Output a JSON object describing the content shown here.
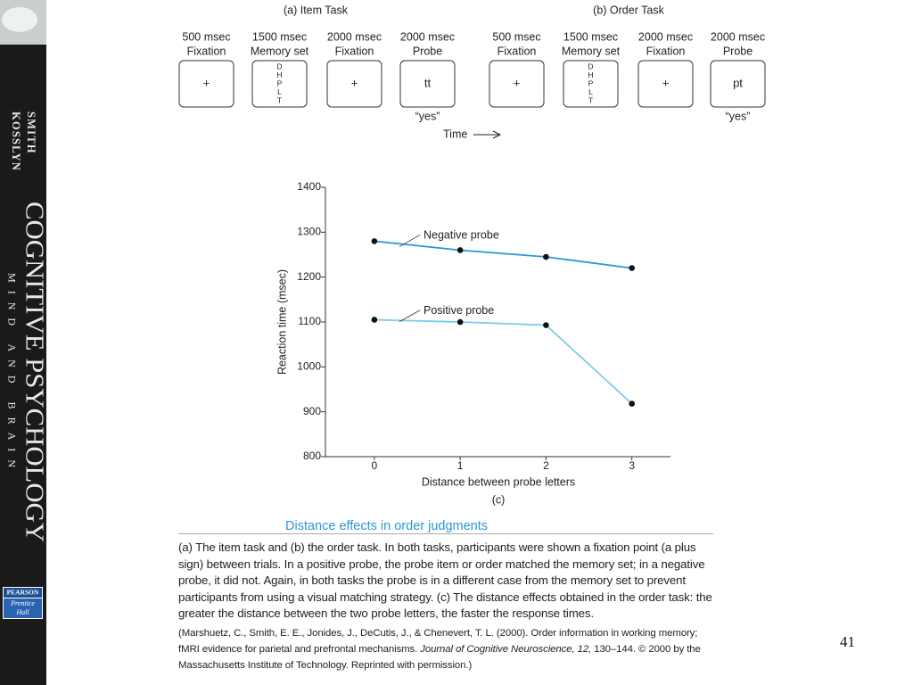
{
  "sidebar": {
    "authors": [
      "SMITH",
      "KOSSLYN"
    ],
    "title": "COGNITIVE PSYCHOLOGY",
    "subtitle": "MIND AND BRAIN",
    "publisher": [
      "PEARSON",
      "Prentice",
      "Hall"
    ]
  },
  "panels": [
    {
      "title": "(a) Item Task",
      "frames": [
        {
          "duration": "500 msec",
          "label": "Fixation",
          "content": [
            "+"
          ]
        },
        {
          "duration": "1500 msec",
          "label": "Memory set",
          "content": [
            "D",
            "H",
            "P",
            "L",
            "T"
          ]
        },
        {
          "duration": "2000 msec",
          "label": "Fixation",
          "content": [
            "+"
          ]
        },
        {
          "duration": "2000 msec",
          "label": "Probe",
          "content": [
            "tt"
          ]
        }
      ],
      "response": "“yes”"
    },
    {
      "title": "(b) Order Task",
      "frames": [
        {
          "duration": "500 msec",
          "label": "Fixation",
          "content": [
            "+"
          ]
        },
        {
          "duration": "1500 msec",
          "label": "Memory set",
          "content": [
            "D",
            "H",
            "P",
            "L",
            "T"
          ]
        },
        {
          "duration": "2000 msec",
          "label": "Fixation",
          "content": [
            "+"
          ]
        },
        {
          "duration": "2000 msec",
          "label": "Probe",
          "content": [
            "pt"
          ]
        }
      ],
      "response": "“yes”"
    }
  ],
  "time_label": "Time",
  "chart_data": {
    "type": "line",
    "x": [
      0,
      1,
      2,
      3
    ],
    "series": [
      {
        "name": "Negative probe",
        "color": "#2a96d4",
        "values": [
          1280,
          1260,
          1245,
          1220
        ]
      },
      {
        "name": "Positive probe",
        "color": "#7ccaec",
        "values": [
          1105,
          1100,
          1093,
          918
        ]
      }
    ],
    "xlim": [
      -0.57,
      3.45
    ],
    "xticks": [
      0,
      1,
      2,
      3
    ],
    "ylim": [
      800,
      1400
    ],
    "yticks": [
      800,
      900,
      1000,
      1100,
      1200,
      1300,
      1400
    ],
    "xlabel": "Distance between probe letters",
    "ylabel": "Reaction time (msec)",
    "panel_label": "(c)"
  },
  "caption": {
    "title": "Distance effects in order judgments",
    "body": "(a) The item task and (b) the order task. In both tasks, participants were shown a fixation point (a plus sign) between trials. In a positive probe, the probe item or order matched the memory set; in a negative probe, it did not. Again, in both tasks the probe is in a different case from the memory set to prevent participants from using a visual matching strategy. (c) The distance effects obtained in the order task: the greater the distance between the two probe letters, the faster the response times.",
    "citation": [
      "(Marshuetz, C., Smith, E. E., Jonides, J., DeCutis, J., & Chenevert, T. L. (2000). Order information in working memory; fMRI evidence for parietal and prefrontal mechanisms. ",
      "Journal of Cognitive Neuroscience, 12,",
      " 130–144. © 2000 by the Massachusetts Institute of Technology. Reprinted with permission.)"
    ]
  },
  "page_number": "41"
}
